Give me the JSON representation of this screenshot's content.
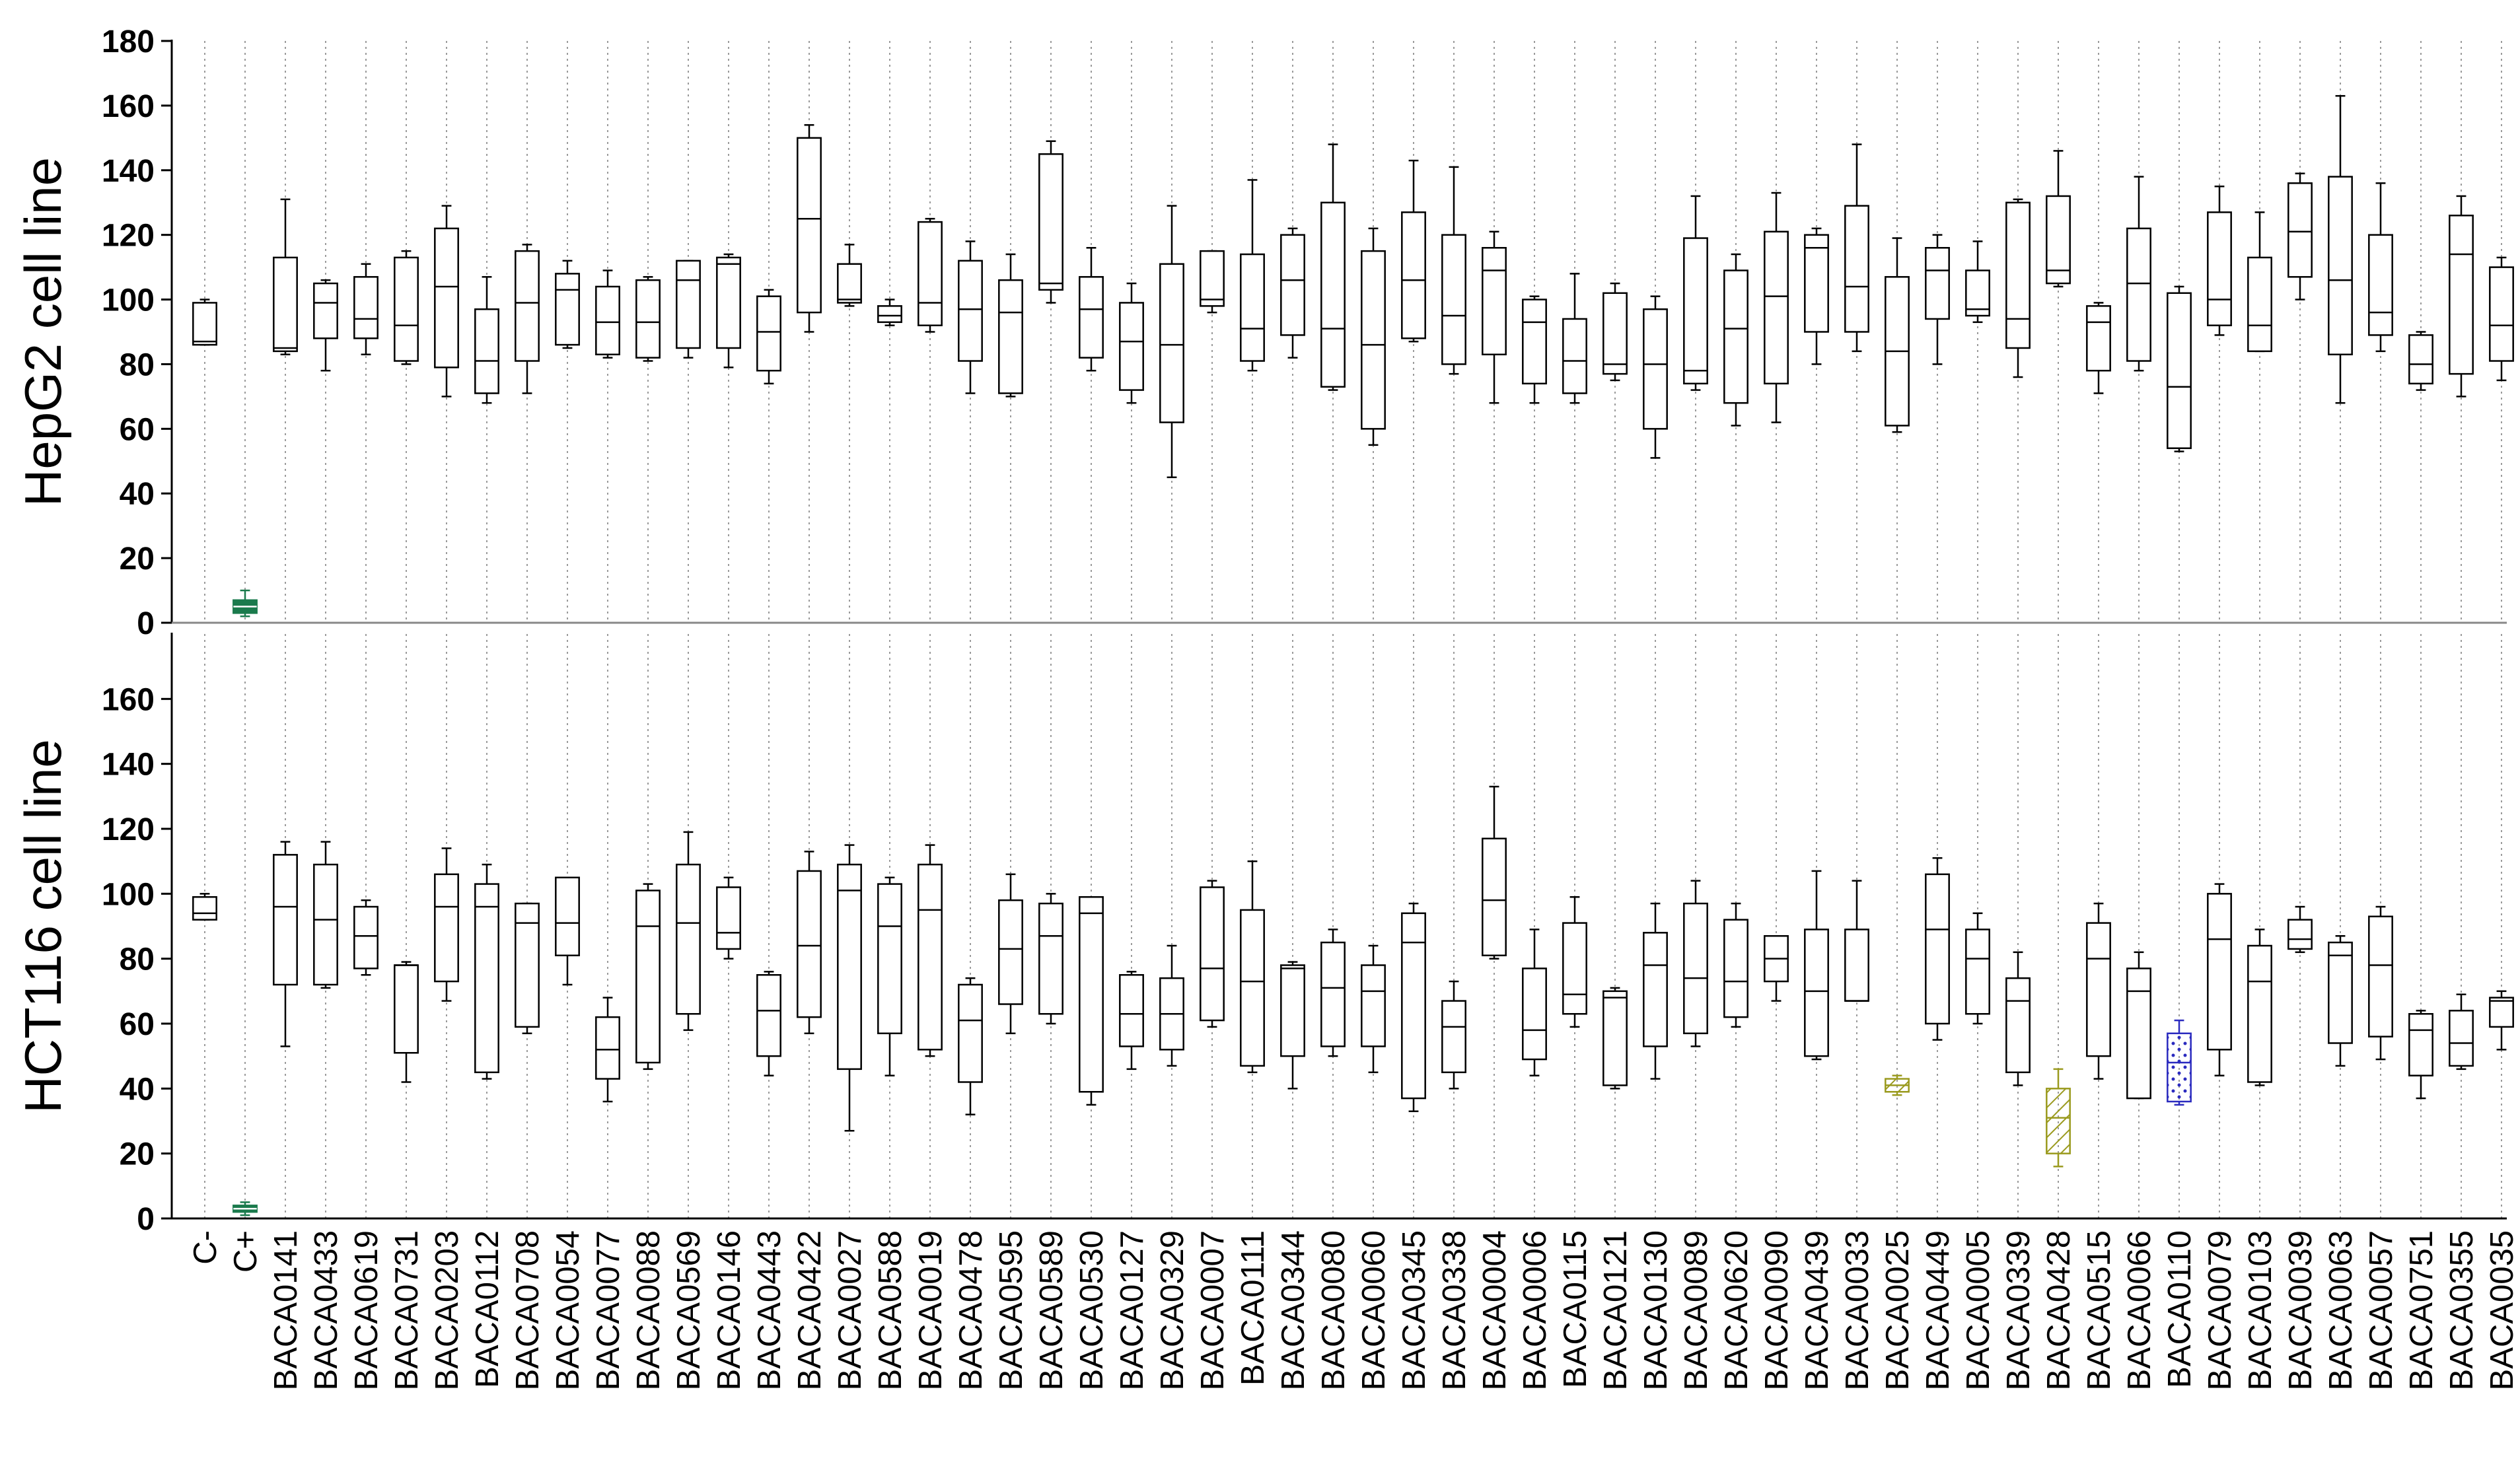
{
  "chart_data": {
    "type": "box",
    "categories": [
      "C-",
      "C+",
      "BACA0141",
      "BACA0433",
      "BACA0619",
      "BACA0731",
      "BACA0203",
      "BACA0112",
      "BACA0708",
      "BACA0054",
      "BACA0077",
      "BACA0088",
      "BACA0569",
      "BACA0146",
      "BACA0443",
      "BACA0422",
      "BACA0027",
      "BACA0588",
      "BACA0019",
      "BACA0478",
      "BACA0595",
      "BACA0589",
      "BACA0530",
      "BACA0127",
      "BACA0329",
      "BACA0007",
      "BACA0111",
      "BACA0344",
      "BACA0080",
      "BACA0060",
      "BACA0345",
      "BACA0338",
      "BACA0004",
      "BACA0006",
      "BACA0115",
      "BACA0121",
      "BACA0130",
      "BACA0089",
      "BACA0620",
      "BACA0090",
      "BACA0439",
      "BACA0033",
      "BACA0025",
      "BACA0449",
      "BACA0005",
      "BACA0339",
      "BACA0428",
      "BACA0515",
      "BACA0066",
      "BACA0110",
      "BACA0079",
      "BACA0103",
      "BACA0039",
      "BACA0063",
      "BACA0057",
      "BACA0751",
      "BACA0355",
      "BACA0035"
    ],
    "panels": [
      {
        "ylabel": "HepG2 cell line",
        "ylim": [
          0,
          180
        ],
        "yticks": [
          "0",
          "20",
          "40",
          "60",
          "80",
          "100",
          "120",
          "140",
          "160",
          "180"
        ],
        "boxes": [
          [
            86,
            86,
            87,
            99,
            100
          ],
          [
            2,
            3,
            5,
            7,
            10
          ],
          [
            83,
            84,
            85,
            113,
            131
          ],
          [
            78,
            88,
            99,
            105,
            106
          ],
          [
            83,
            88,
            94,
            107,
            111
          ],
          [
            80,
            81,
            92,
            113,
            115
          ],
          [
            70,
            79,
            104,
            122,
            129
          ],
          [
            68,
            71,
            81,
            97,
            107
          ],
          [
            71,
            81,
            99,
            115,
            117
          ],
          [
            85,
            86,
            103,
            108,
            112
          ],
          [
            82,
            83,
            93,
            104,
            109
          ],
          [
            81,
            82,
            93,
            106,
            107
          ],
          [
            82,
            85,
            106,
            112,
            112
          ],
          [
            79,
            85,
            111,
            113,
            114
          ],
          [
            74,
            78,
            90,
            101,
            103
          ],
          [
            90,
            96,
            125,
            150,
            154
          ],
          [
            98,
            99,
            100,
            111,
            117
          ],
          [
            92,
            93,
            95,
            98,
            100
          ],
          [
            90,
            92,
            99,
            124,
            125
          ],
          [
            71,
            81,
            97,
            112,
            118
          ],
          [
            70,
            71,
            96,
            106,
            114
          ],
          [
            99,
            103,
            105,
            145,
            149
          ],
          [
            78,
            82,
            97,
            107,
            116
          ],
          [
            68,
            72,
            87,
            99,
            105
          ],
          [
            45,
            62,
            86,
            111,
            129
          ],
          [
            96,
            98,
            100,
            115,
            115
          ],
          [
            78,
            81,
            91,
            114,
            137
          ],
          [
            82,
            89,
            106,
            120,
            122
          ],
          [
            72,
            73,
            91,
            130,
            148
          ],
          [
            55,
            60,
            86,
            115,
            122
          ],
          [
            87,
            88,
            106,
            127,
            143
          ],
          [
            77,
            80,
            95,
            120,
            141
          ],
          [
            68,
            83,
            109,
            116,
            121
          ],
          [
            68,
            74,
            93,
            100,
            101
          ],
          [
            68,
            71,
            81,
            94,
            108
          ],
          [
            75,
            77,
            80,
            102,
            105
          ],
          [
            51,
            60,
            80,
            97,
            101
          ],
          [
            72,
            74,
            78,
            119,
            132
          ],
          [
            61,
            68,
            91,
            109,
            114
          ],
          [
            62,
            74,
            101,
            121,
            133
          ],
          [
            80,
            90,
            116,
            120,
            122
          ],
          [
            84,
            90,
            104,
            129,
            148
          ],
          [
            59,
            61,
            84,
            107,
            119
          ],
          [
            80,
            94,
            109,
            116,
            120
          ],
          [
            93,
            95,
            97,
            109,
            118
          ],
          [
            76,
            85,
            94,
            130,
            131
          ],
          [
            104,
            105,
            109,
            132,
            146
          ],
          [
            71,
            78,
            93,
            98,
            99
          ],
          [
            78,
            81,
            105,
            122,
            138
          ],
          [
            53,
            54,
            73,
            102,
            104
          ],
          [
            89,
            92,
            100,
            127,
            135
          ],
          [
            84,
            84,
            92,
            113,
            127
          ],
          [
            100,
            107,
            121,
            136,
            139
          ],
          [
            68,
            83,
            106,
            138,
            163
          ],
          [
            84,
            89,
            96,
            120,
            136
          ],
          [
            72,
            74,
            80,
            89,
            90
          ],
          [
            70,
            77,
            114,
            126,
            132
          ],
          [
            75,
            81,
            92,
            110,
            113
          ]
        ]
      },
      {
        "ylabel": "HCT116 cell line",
        "ylim": [
          0,
          180
        ],
        "yticks": [
          "0",
          "20",
          "40",
          "60",
          "80",
          "100",
          "120",
          "140",
          "160"
        ],
        "boxes": [
          [
            92,
            92,
            94,
            99,
            100
          ],
          [
            1,
            2,
            3,
            4,
            5
          ],
          [
            53,
            72,
            96,
            112,
            116
          ],
          [
            71,
            72,
            92,
            109,
            116
          ],
          [
            75,
            77,
            87,
            96,
            98
          ],
          [
            42,
            51,
            78,
            78,
            79
          ],
          [
            67,
            73,
            96,
            106,
            114
          ],
          [
            43,
            45,
            96,
            103,
            109
          ],
          [
            57,
            59,
            91,
            97,
            97
          ],
          [
            72,
            81,
            91,
            105,
            105
          ],
          [
            36,
            43,
            52,
            62,
            68
          ],
          [
            46,
            48,
            90,
            101,
            103
          ],
          [
            58,
            63,
            91,
            109,
            119
          ],
          [
            80,
            83,
            88,
            102,
            105
          ],
          [
            44,
            50,
            64,
            75,
            76
          ],
          [
            57,
            62,
            84,
            107,
            113
          ],
          [
            27,
            46,
            101,
            109,
            115
          ],
          [
            44,
            57,
            90,
            103,
            105
          ],
          [
            50,
            52,
            95,
            109,
            115
          ],
          [
            32,
            42,
            61,
            72,
            74
          ],
          [
            57,
            66,
            83,
            98,
            106
          ],
          [
            60,
            63,
            87,
            97,
            100
          ],
          [
            35,
            39,
            94,
            99,
            99
          ],
          [
            46,
            53,
            63,
            75,
            76
          ],
          [
            47,
            52,
            63,
            74,
            84
          ],
          [
            59,
            61,
            77,
            102,
            104
          ],
          [
            45,
            47,
            73,
            95,
            110
          ],
          [
            40,
            50,
            77,
            78,
            79
          ],
          [
            50,
            53,
            71,
            85,
            89
          ],
          [
            45,
            53,
            70,
            78,
            84
          ],
          [
            33,
            37,
            85,
            94,
            97
          ],
          [
            40,
            45,
            59,
            67,
            73
          ],
          [
            80,
            81,
            98,
            117,
            133
          ],
          [
            44,
            49,
            58,
            77,
            89
          ],
          [
            59,
            63,
            69,
            91,
            99
          ],
          [
            40,
            41,
            68,
            70,
            71
          ],
          [
            43,
            53,
            78,
            88,
            97
          ],
          [
            53,
            57,
            74,
            97,
            104
          ],
          [
            59,
            62,
            73,
            92,
            97
          ],
          [
            67,
            73,
            80,
            87,
            87
          ],
          [
            49,
            50,
            70,
            89,
            107
          ],
          [
            67,
            67,
            67,
            89,
            104
          ],
          [
            38,
            39,
            41,
            43,
            44
          ],
          [
            55,
            60,
            89,
            106,
            111
          ],
          [
            60,
            63,
            80,
            89,
            94
          ],
          [
            41,
            45,
            67,
            74,
            82
          ],
          [
            16,
            20,
            31,
            40,
            46
          ],
          [
            43,
            50,
            80,
            91,
            97
          ],
          [
            37,
            37,
            70,
            77,
            82
          ],
          [
            35,
            36,
            48,
            57,
            61
          ],
          [
            44,
            52,
            86,
            100,
            103
          ],
          [
            41,
            42,
            73,
            84,
            89
          ],
          [
            82,
            83,
            86,
            92,
            96
          ],
          [
            47,
            54,
            81,
            85,
            87
          ],
          [
            49,
            56,
            78,
            93,
            96
          ],
          [
            37,
            44,
            58,
            63,
            64
          ],
          [
            46,
            47,
            54,
            64,
            69
          ],
          [
            52,
            59,
            67,
            68,
            70
          ]
        ]
      }
    ],
    "highlights": [
      {
        "panel": 0,
        "category": "C+",
        "color": "#1a7a4c",
        "fill": "solid"
      },
      {
        "panel": 1,
        "category": "C+",
        "color": "#1a7a4c",
        "fill": "solid"
      },
      {
        "panel": 1,
        "category": "BACA0025",
        "color": "#9a9a1e",
        "fill": "hatch"
      },
      {
        "panel": 1,
        "category": "BACA0428",
        "color": "#9a9a1e",
        "fill": "hatch"
      },
      {
        "panel": 1,
        "category": "BACA0110",
        "color": "#2b2bbf",
        "fill": "dots"
      }
    ],
    "grid": "vertical-dotted",
    "default_color": "#000000"
  }
}
